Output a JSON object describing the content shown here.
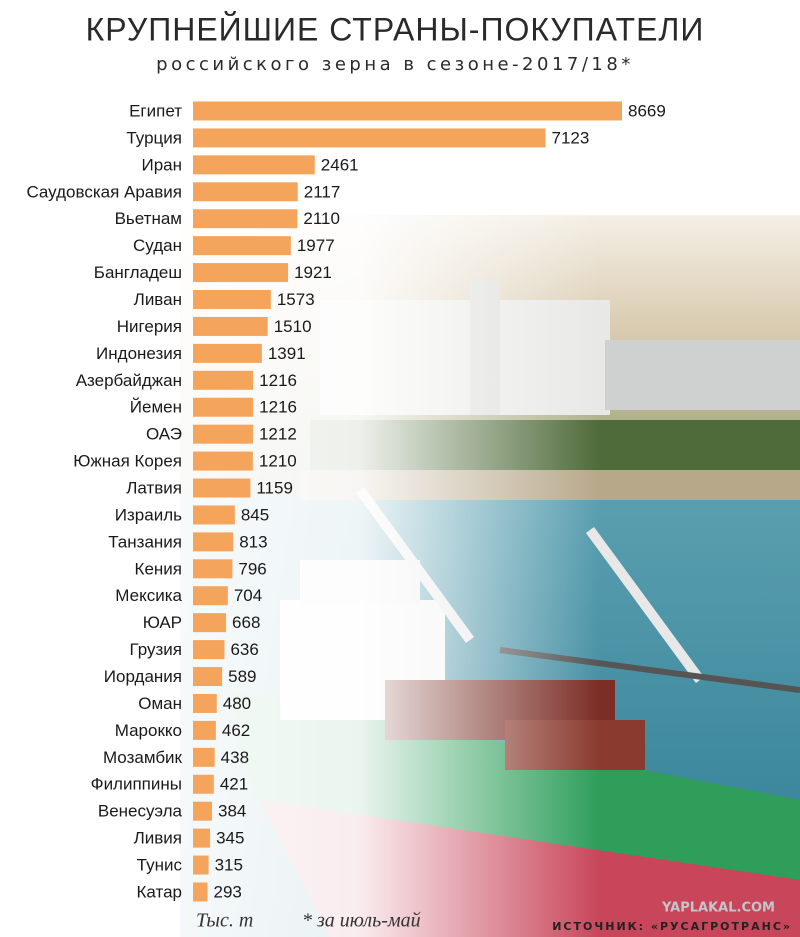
{
  "chart_data": {
    "type": "bar",
    "orientation": "horizontal",
    "title": "КРУПНЕЙШИЕ СТРАНЫ-ПОКУПАТЕЛИ",
    "subtitle": "российского зерна в сезоне-2017/18*",
    "categories": [
      "Египет",
      "Турция",
      "Иран",
      "Саудовская Аравия",
      "Вьетнам",
      "Судан",
      "Бангладеш",
      "Ливан",
      "Нигерия",
      "Индонезия",
      "Азербайджан",
      "Йемен",
      "ОАЭ",
      "Южная Корея",
      "Латвия",
      "Израиль",
      "Танзания",
      "Кения",
      "Мексика",
      "ЮАР",
      "Грузия",
      "Иордания",
      "Оман",
      "Марокко",
      "Мозамбик",
      "Филиппины",
      "Венесуэла",
      "Ливия",
      "Тунис",
      "Катар"
    ],
    "values": [
      8669,
      7123,
      2461,
      2117,
      2110,
      1977,
      1921,
      1573,
      1510,
      1391,
      1216,
      1216,
      1212,
      1210,
      1159,
      845,
      813,
      796,
      704,
      668,
      636,
      589,
      480,
      462,
      438,
      421,
      384,
      345,
      315,
      293
    ],
    "color": "#f5a45c",
    "unit_note": "Тыс. т",
    "footnote": "* за июль-май",
    "source": "ИСТОЧНИК: «РУСАГРОТРАНС»",
    "watermark": "YAPLAKAL.COM"
  }
}
